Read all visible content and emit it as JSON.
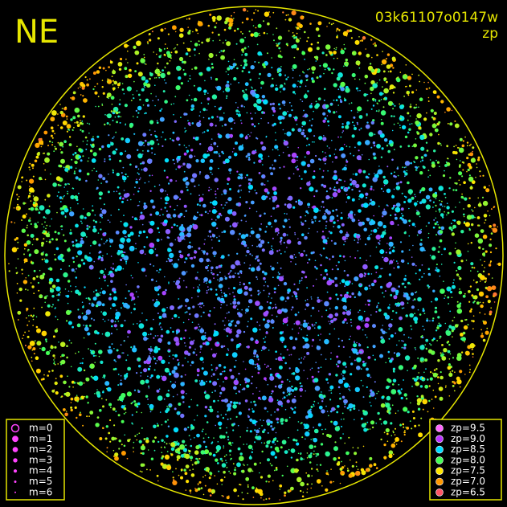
{
  "corner_label": "NE",
  "header": {
    "id": "03k61107o0147w",
    "mode": "zp"
  },
  "magnitude_legend": [
    {
      "label": "m=0"
    },
    {
      "label": "m=1"
    },
    {
      "label": "m=2"
    },
    {
      "label": "m=3"
    },
    {
      "label": "m=4"
    },
    {
      "label": "m=5"
    },
    {
      "label": "m=6"
    }
  ],
  "zp_legend": [
    {
      "label": "zp=9.5",
      "color": "#ff66ff"
    },
    {
      "label": "zp=9.0",
      "color": "#bb33ff"
    },
    {
      "label": "zp=8.5",
      "color": "#00ddff"
    },
    {
      "label": "zp=8.0",
      "color": "#44ff55"
    },
    {
      "label": "zp=7.5",
      "color": "#ffe600"
    },
    {
      "label": "zp=7.0",
      "color": "#ff9900"
    },
    {
      "label": "zp=6.5",
      "color": "#ff5566"
    }
  ]
}
